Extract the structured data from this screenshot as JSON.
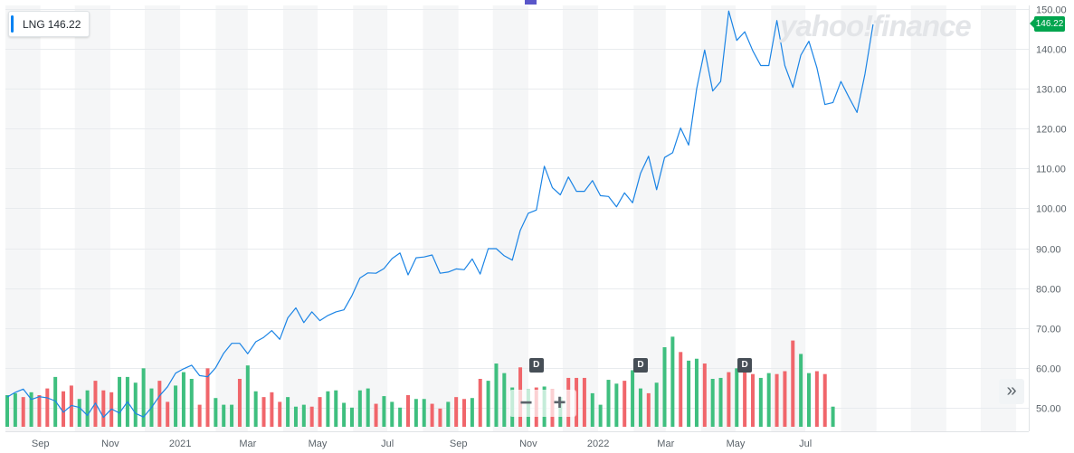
{
  "ticker": {
    "symbol": "LNG",
    "price": "146.22"
  },
  "price_tag": "146.22",
  "watermark": "yahoo!finance",
  "controls": {
    "zoom_out": "−",
    "zoom_in": "+",
    "more": "»"
  },
  "dividend_label": "D",
  "colors": {
    "line": "#1b84e5",
    "up": "#3fbf7f",
    "down": "#f0666b",
    "band": "#f5f6f7",
    "tag": "#02a54e"
  },
  "chart_data": {
    "type": "line",
    "ylim": [
      44,
      151
    ],
    "grid": true,
    "price_axis_side": "right",
    "y_ticks": [
      "50.00",
      "60.00",
      "70.00",
      "80.00",
      "90.00",
      "100.00",
      "110.00",
      "120.00",
      "130.00",
      "140.00",
      "150.00"
    ],
    "x_labels": [
      "Sep",
      "Nov",
      "2021",
      "Mar",
      "May",
      "Jul",
      "Sep",
      "Nov",
      "2022",
      "Mar",
      "May",
      "Jul"
    ],
    "price_series": [
      [
        "2020-08-03",
        52.6
      ],
      [
        "2020-08-10",
        53.8
      ],
      [
        "2020-08-17",
        54.6
      ],
      [
        "2020-08-24",
        52.0
      ],
      [
        "2020-08-31",
        52.7
      ],
      [
        "2020-09-07",
        52.4
      ],
      [
        "2020-09-14",
        51.6
      ],
      [
        "2020-09-21",
        48.8
      ],
      [
        "2020-09-28",
        50.5
      ],
      [
        "2020-10-05",
        50.0
      ],
      [
        "2020-10-12",
        48.0
      ],
      [
        "2020-10-19",
        51.1
      ],
      [
        "2020-10-26",
        47.5
      ],
      [
        "2020-11-02",
        49.6
      ],
      [
        "2020-11-09",
        48.6
      ],
      [
        "2020-11-16",
        51.4
      ],
      [
        "2020-11-23",
        48.5
      ],
      [
        "2020-11-30",
        47.6
      ],
      [
        "2020-12-07",
        50.0
      ],
      [
        "2020-12-14",
        52.9
      ],
      [
        "2020-12-21",
        55.2
      ],
      [
        "2020-12-28",
        58.6
      ],
      [
        "2021-01-04",
        59.7
      ],
      [
        "2021-01-11",
        60.6
      ],
      [
        "2021-01-18",
        58.0
      ],
      [
        "2021-01-25",
        57.7
      ],
      [
        "2021-02-01",
        60.0
      ],
      [
        "2021-02-08",
        63.6
      ],
      [
        "2021-02-15",
        66.1
      ],
      [
        "2021-02-22",
        66.1
      ],
      [
        "2021-03-01",
        63.5
      ],
      [
        "2021-03-08",
        66.5
      ],
      [
        "2021-03-15",
        67.6
      ],
      [
        "2021-03-22",
        69.3
      ],
      [
        "2021-03-29",
        67.1
      ],
      [
        "2021-04-05",
        72.5
      ],
      [
        "2021-04-12",
        75.0
      ],
      [
        "2021-04-19",
        71.3
      ],
      [
        "2021-04-26",
        74.0
      ],
      [
        "2021-05-03",
        71.8
      ],
      [
        "2021-05-10",
        73.1
      ],
      [
        "2021-05-17",
        74.0
      ],
      [
        "2021-05-24",
        74.5
      ],
      [
        "2021-05-31",
        78.1
      ],
      [
        "2021-06-07",
        82.5
      ],
      [
        "2021-06-14",
        83.8
      ],
      [
        "2021-06-21",
        83.7
      ],
      [
        "2021-06-28",
        84.9
      ],
      [
        "2021-07-05",
        87.4
      ],
      [
        "2021-07-12",
        88.8
      ],
      [
        "2021-07-19",
        83.3
      ],
      [
        "2021-07-26",
        87.6
      ],
      [
        "2021-08-02",
        87.8
      ],
      [
        "2021-08-09",
        88.3
      ],
      [
        "2021-08-16",
        83.7
      ],
      [
        "2021-08-23",
        84.0
      ],
      [
        "2021-08-30",
        84.8
      ],
      [
        "2021-09-06",
        84.6
      ],
      [
        "2021-09-13",
        87.3
      ],
      [
        "2021-09-20",
        83.5
      ],
      [
        "2021-09-27",
        89.9
      ],
      [
        "2021-10-04",
        89.9
      ],
      [
        "2021-10-11",
        88.1
      ],
      [
        "2021-10-18",
        87.0
      ],
      [
        "2021-10-25",
        94.5
      ],
      [
        "2021-11-01",
        98.8
      ],
      [
        "2021-11-08",
        99.6
      ],
      [
        "2021-11-15",
        110.6
      ],
      [
        "2021-11-22",
        105.2
      ],
      [
        "2021-11-29",
        103.4
      ],
      [
        "2021-12-06",
        107.9
      ],
      [
        "2021-12-13",
        104.3
      ],
      [
        "2021-12-20",
        104.3
      ],
      [
        "2021-12-27",
        107.0
      ],
      [
        "2022-01-03",
        103.2
      ],
      [
        "2022-01-10",
        103.0
      ],
      [
        "2022-01-17",
        100.4
      ],
      [
        "2022-01-24",
        103.9
      ],
      [
        "2022-01-31",
        101.4
      ],
      [
        "2022-02-07",
        108.8
      ],
      [
        "2022-02-14",
        113.1
      ],
      [
        "2022-02-21",
        104.7
      ],
      [
        "2022-02-28",
        112.8
      ],
      [
        "2022-03-07",
        114.0
      ],
      [
        "2022-03-14",
        120.2
      ],
      [
        "2022-03-21",
        115.9
      ],
      [
        "2022-03-28",
        130.1
      ],
      [
        "2022-04-04",
        139.8
      ],
      [
        "2022-04-11",
        129.5
      ],
      [
        "2022-04-18",
        131.9
      ],
      [
        "2022-04-25",
        149.6
      ],
      [
        "2022-05-02",
        142.2
      ],
      [
        "2022-05-09",
        144.4
      ],
      [
        "2022-05-16",
        139.6
      ],
      [
        "2022-05-23",
        135.9
      ],
      [
        "2022-05-30",
        135.9
      ],
      [
        "2022-06-06",
        147.2
      ],
      [
        "2022-06-13",
        135.9
      ],
      [
        "2022-06-20",
        130.4
      ],
      [
        "2022-06-27",
        138.5
      ],
      [
        "2022-07-04",
        142.0
      ],
      [
        "2022-07-11",
        135.3
      ],
      [
        "2022-07-18",
        126.1
      ],
      [
        "2022-07-25",
        126.6
      ],
      [
        "2022-08-01",
        131.9
      ],
      [
        "2022-08-08",
        127.9
      ],
      [
        "2022-08-15",
        124.1
      ],
      [
        "2022-08-22",
        133.8
      ],
      [
        "2022-08-29",
        146.22
      ]
    ],
    "volume_series": [
      [
        "2020-08-03",
        0.33,
        "up"
      ],
      [
        "2020-08-10",
        0.35,
        "up"
      ],
      [
        "2020-08-17",
        0.31,
        "down"
      ],
      [
        "2020-08-24",
        0.36,
        "up"
      ],
      [
        "2020-08-31",
        0.33,
        "down"
      ],
      [
        "2020-09-07",
        0.4,
        "down"
      ],
      [
        "2020-09-14",
        0.52,
        "up"
      ],
      [
        "2020-09-21",
        0.37,
        "down"
      ],
      [
        "2020-09-28",
        0.43,
        "down"
      ],
      [
        "2020-10-05",
        0.29,
        "up"
      ],
      [
        "2020-10-12",
        0.38,
        "up"
      ],
      [
        "2020-10-19",
        0.48,
        "down"
      ],
      [
        "2020-10-26",
        0.38,
        "down"
      ],
      [
        "2020-11-02",
        0.36,
        "down"
      ],
      [
        "2020-11-09",
        0.52,
        "up"
      ],
      [
        "2020-11-16",
        0.52,
        "up"
      ],
      [
        "2020-11-23",
        0.46,
        "up"
      ],
      [
        "2020-11-30",
        0.61,
        "up"
      ],
      [
        "2020-12-07",
        0.4,
        "up"
      ],
      [
        "2020-12-14",
        0.48,
        "down"
      ],
      [
        "2020-12-21",
        0.26,
        "down"
      ],
      [
        "2020-12-28",
        0.43,
        "up"
      ],
      [
        "2021-01-04",
        0.57,
        "up"
      ],
      [
        "2021-01-11",
        0.5,
        "up"
      ],
      [
        "2021-01-18",
        0.23,
        "down"
      ],
      [
        "2021-01-25",
        0.61,
        "down"
      ],
      [
        "2021-02-01",
        0.3,
        "up"
      ],
      [
        "2021-02-08",
        0.23,
        "up"
      ],
      [
        "2021-02-15",
        0.23,
        "up"
      ],
      [
        "2021-02-22",
        0.5,
        "down"
      ],
      [
        "2021-03-01",
        0.64,
        "up"
      ],
      [
        "2021-03-08",
        0.37,
        "up"
      ],
      [
        "2021-03-15",
        0.31,
        "down"
      ],
      [
        "2021-03-22",
        0.36,
        "down"
      ],
      [
        "2021-03-29",
        0.26,
        "down"
      ],
      [
        "2021-04-05",
        0.31,
        "up"
      ],
      [
        "2021-04-12",
        0.21,
        "up"
      ],
      [
        "2021-04-19",
        0.23,
        "up"
      ],
      [
        "2021-04-26",
        0.21,
        "down"
      ],
      [
        "2021-05-03",
        0.31,
        "down"
      ],
      [
        "2021-05-10",
        0.37,
        "up"
      ],
      [
        "2021-05-17",
        0.38,
        "up"
      ],
      [
        "2021-05-24",
        0.25,
        "up"
      ],
      [
        "2021-05-31",
        0.2,
        "up"
      ],
      [
        "2021-06-07",
        0.38,
        "up"
      ],
      [
        "2021-06-14",
        0.4,
        "up"
      ],
      [
        "2021-06-21",
        0.24,
        "down"
      ],
      [
        "2021-06-28",
        0.32,
        "up"
      ],
      [
        "2021-07-05",
        0.26,
        "up"
      ],
      [
        "2021-07-12",
        0.2,
        "up"
      ],
      [
        "2021-07-19",
        0.33,
        "down"
      ],
      [
        "2021-07-26",
        0.29,
        "up"
      ],
      [
        "2021-08-02",
        0.29,
        "up"
      ],
      [
        "2021-08-09",
        0.24,
        "down"
      ],
      [
        "2021-08-16",
        0.19,
        "down"
      ],
      [
        "2021-08-23",
        0.26,
        "up"
      ],
      [
        "2021-08-30",
        0.31,
        "down"
      ],
      [
        "2021-09-06",
        0.29,
        "down"
      ],
      [
        "2021-09-13",
        0.3,
        "up"
      ],
      [
        "2021-09-20",
        0.5,
        "down"
      ],
      [
        "2021-09-27",
        0.48,
        "up"
      ],
      [
        "2021-10-04",
        0.66,
        "up"
      ],
      [
        "2021-10-11",
        0.56,
        "up"
      ],
      [
        "2021-10-18",
        0.41,
        "up"
      ],
      [
        "2021-10-25",
        0.62,
        "down"
      ],
      [
        "2021-11-01",
        0.39,
        "up"
      ],
      [
        "2021-11-08",
        0.41,
        "down"
      ],
      [
        "2021-11-15",
        0.42,
        "up"
      ],
      [
        "2021-11-22",
        0.39,
        "down"
      ],
      [
        "2021-11-29",
        0.31,
        "up"
      ],
      [
        "2021-12-06",
        0.51,
        "down"
      ],
      [
        "2021-12-13",
        0.51,
        "down"
      ],
      [
        "2021-12-20",
        0.51,
        "down"
      ],
      [
        "2021-12-27",
        0.35,
        "up"
      ],
      [
        "2022-01-03",
        0.23,
        "up"
      ],
      [
        "2022-01-10",
        0.49,
        "up"
      ],
      [
        "2022-01-17",
        0.45,
        "up"
      ],
      [
        "2022-01-24",
        0.48,
        "down"
      ],
      [
        "2022-01-31",
        0.59,
        "up"
      ],
      [
        "2022-02-07",
        0.4,
        "up"
      ],
      [
        "2022-02-14",
        0.35,
        "down"
      ],
      [
        "2022-02-21",
        0.46,
        "up"
      ],
      [
        "2022-02-28",
        0.83,
        "up"
      ],
      [
        "2022-03-07",
        0.94,
        "up"
      ],
      [
        "2022-03-14",
        0.78,
        "down"
      ],
      [
        "2022-03-21",
        0.69,
        "up"
      ],
      [
        "2022-03-28",
        0.71,
        "up"
      ],
      [
        "2022-04-04",
        0.66,
        "down"
      ],
      [
        "2022-04-11",
        0.5,
        "up"
      ],
      [
        "2022-04-18",
        0.51,
        "up"
      ],
      [
        "2022-04-25",
        0.57,
        "down"
      ],
      [
        "2022-05-02",
        0.61,
        "up"
      ],
      [
        "2022-05-09",
        0.69,
        "down"
      ],
      [
        "2022-05-16",
        0.55,
        "down"
      ],
      [
        "2022-05-23",
        0.51,
        "up"
      ],
      [
        "2022-05-30",
        0.56,
        "up"
      ],
      [
        "2022-06-06",
        0.55,
        "down"
      ],
      [
        "2022-06-13",
        0.58,
        "down"
      ],
      [
        "2022-06-20",
        0.9,
        "down"
      ],
      [
        "2022-06-27",
        0.76,
        "up"
      ],
      [
        "2022-07-04",
        0.56,
        "up"
      ],
      [
        "2022-07-11",
        0.58,
        "down"
      ],
      [
        "2022-07-18",
        0.55,
        "down"
      ],
      [
        "2022-07-25",
        0.21,
        "up"
      ]
    ],
    "dividends": [
      "2021-11-08",
      "2022-02-07",
      "2022-05-09"
    ]
  }
}
